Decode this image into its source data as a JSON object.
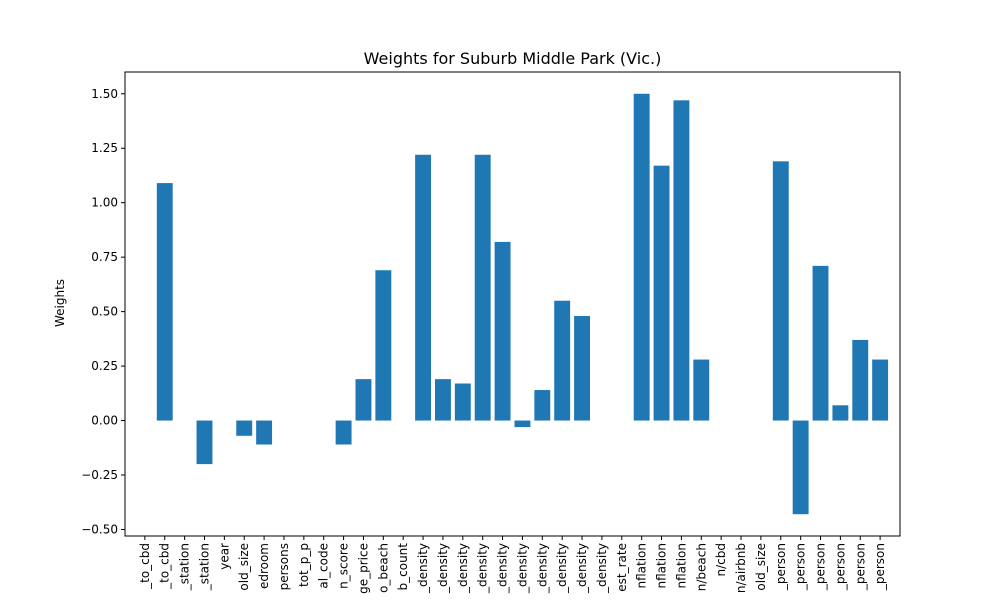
{
  "chart_data": {
    "type": "bar",
    "title": "Weights for Suburb Middle Park (Vic.)",
    "xlabel": "",
    "ylabel": "Weights",
    "ylim": [
      -0.53,
      1.6
    ],
    "yticks": [
      -0.5,
      -0.25,
      0.0,
      0.25,
      0.5,
      0.75,
      1.0,
      1.25,
      1.5
    ],
    "ytick_labels": [
      "−0.50",
      "−0.25",
      "0.00",
      "0.25",
      "0.50",
      "0.75",
      "1.00",
      "1.25",
      "1.50"
    ],
    "bar_color": "#1f77b4",
    "grid": false,
    "categories": [
      "_to_cbd",
      "_to_cbd",
      "_station",
      "_station",
      "year",
      "old_size",
      "edroom",
      "persons",
      "tot_p_p",
      "al_code",
      "n_score",
      "ge_price",
      "o_beach",
      "b_count",
      "_density",
      "_density",
      "_density",
      "_density",
      "_density",
      "_density",
      "_density",
      "_density",
      "_density",
      "_density",
      "est_rate",
      "nflation",
      "nflation",
      "nflation",
      "n/beach",
      "n/cbd",
      "n/airbnb",
      "old_size",
      "_person",
      "_person",
      "_person",
      "_person",
      "_person",
      "_person"
    ],
    "values": [
      0,
      1.09,
      0,
      -0.2,
      0,
      -0.07,
      -0.11,
      0,
      0,
      0,
      -0.11,
      0.19,
      0.69,
      0,
      1.22,
      0.19,
      0.17,
      1.22,
      0.82,
      -0.03,
      0.14,
      0.55,
      0.48,
      0,
      0,
      1.5,
      1.17,
      1.47,
      0.28,
      0,
      0,
      0,
      1.19,
      -0.43,
      0.71,
      0.07,
      0.37,
      0.28
    ]
  }
}
